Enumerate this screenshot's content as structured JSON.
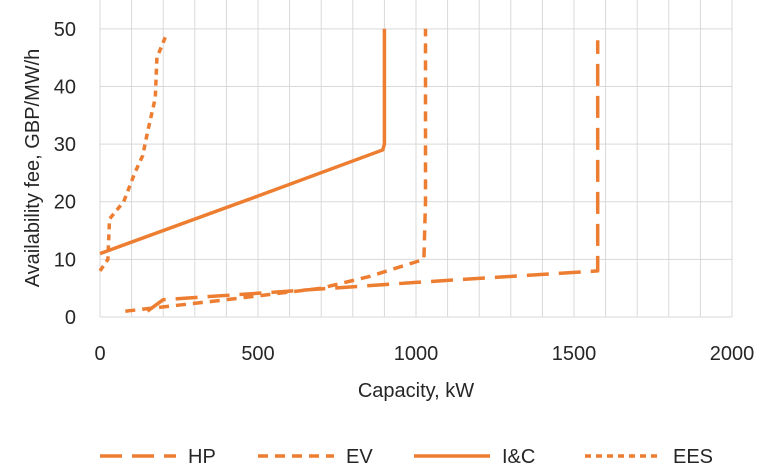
{
  "chart_data": {
    "type": "line",
    "title": "",
    "xlabel": "Capacity, kW",
    "ylabel": "Availability fee, GBP/MW/h",
    "xlim": [
      0,
      2000
    ],
    "ylim": [
      0,
      55
    ],
    "xticks": [
      0,
      500,
      1000,
      1500,
      2000
    ],
    "yticks": [
      0,
      10,
      20,
      30,
      40,
      50
    ],
    "xtick_labels": [
      "0",
      "500",
      "1000",
      "1500",
      "2000"
    ],
    "ytick_labels": [
      "0",
      "10",
      "20",
      "30",
      "40",
      "50"
    ],
    "grid": true,
    "legend_position": "bottom",
    "color": "#ED7D31",
    "series": [
      {
        "name": "HP",
        "dash": "long-dash",
        "points": [
          [
            150,
            1
          ],
          [
            200,
            3
          ],
          [
            600,
            4.5
          ],
          [
            1000,
            6
          ],
          [
            1575,
            8
          ],
          [
            1575,
            20
          ],
          [
            1575,
            48
          ]
        ]
      },
      {
        "name": "EV",
        "dash": "dash",
        "points": [
          [
            80,
            1
          ],
          [
            400,
            3
          ],
          [
            700,
            5
          ],
          [
            850,
            7
          ],
          [
            1025,
            10
          ],
          [
            1030,
            20
          ],
          [
            1030,
            50
          ]
        ]
      },
      {
        "name": "I&C",
        "dash": "solid",
        "points": [
          [
            0,
            11
          ],
          [
            500,
            21
          ],
          [
            895,
            29
          ],
          [
            900,
            30
          ],
          [
            900,
            50
          ]
        ]
      },
      {
        "name": "EES",
        "dash": "dot",
        "points": [
          [
            0,
            8
          ],
          [
            25,
            10
          ],
          [
            30,
            17
          ],
          [
            75,
            20
          ],
          [
            110,
            25
          ],
          [
            135,
            28
          ],
          [
            150,
            32
          ],
          [
            175,
            38
          ],
          [
            180,
            45
          ],
          [
            210,
            49
          ]
        ]
      }
    ]
  }
}
